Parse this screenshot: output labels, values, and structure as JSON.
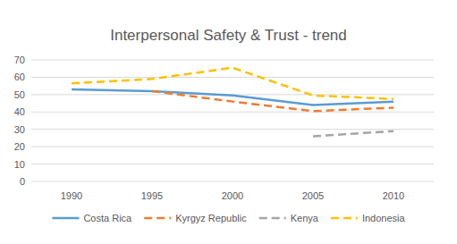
{
  "chart_data": {
    "type": "line",
    "title": "Interpersonal Safety & Trust - trend",
    "categories": [
      "1990",
      "1995",
      "2000",
      "2005",
      "2010"
    ],
    "series": [
      {
        "name": "Costa Rica",
        "color": "#5b9bd5",
        "line_style": "solid",
        "values": [
          53,
          52,
          49.5,
          44,
          46
        ]
      },
      {
        "name": "Kyrgyz Republic",
        "color": "#ed7d31",
        "line_style": "dashed",
        "values": [
          null,
          52,
          46,
          40.5,
          42.5
        ]
      },
      {
        "name": "Kenya",
        "color": "#a5a5a5",
        "line_style": "dashed",
        "values": [
          null,
          null,
          null,
          26,
          29
        ]
      },
      {
        "name": "Indonesia",
        "color": "#ffc000",
        "line_style": "dashed",
        "values": [
          56.5,
          59,
          65.5,
          49.5,
          47.5
        ]
      }
    ],
    "ylim": [
      0,
      70
    ],
    "yticks": [
      0,
      10,
      20,
      30,
      40,
      50,
      60,
      70
    ],
    "grid": true,
    "legend": "bottom"
  }
}
